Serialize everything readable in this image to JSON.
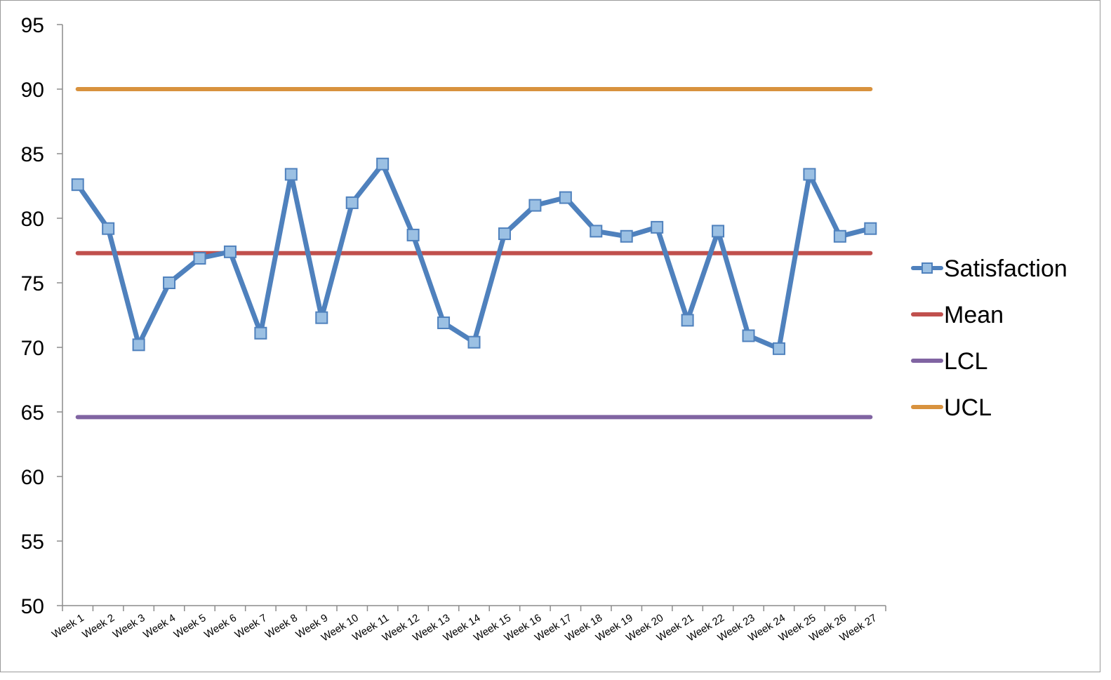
{
  "chart_data": {
    "type": "line",
    "title": "",
    "xlabel": "",
    "ylabel": "",
    "ylim": [
      50,
      95
    ],
    "yticks": [
      50,
      55,
      60,
      65,
      70,
      75,
      80,
      85,
      90,
      95
    ],
    "grid": false,
    "legend_position": "right",
    "categories": [
      "Week 1",
      "Week 2",
      "Week 3",
      "Week 4",
      "Week 5",
      "Week 6",
      "Week 7",
      "Week 8",
      "Week 9",
      "Week 10",
      "Week 11",
      "Week 12",
      "Week 13",
      "Week 14",
      "Week 15",
      "Week 16",
      "Week 17",
      "Week 18",
      "Week 19",
      "Week 20",
      "Week 21",
      "Week 22",
      "Week 23",
      "Week 24",
      "Week 25",
      "Week 26",
      "Week 27"
    ],
    "series": [
      {
        "name": "Satisfaction",
        "color": "#4f81bd",
        "marker": "square",
        "values": [
          82.6,
          79.2,
          70.2,
          75.0,
          76.9,
          77.4,
          71.1,
          83.4,
          72.3,
          81.2,
          84.2,
          78.7,
          71.9,
          70.4,
          78.8,
          81.0,
          81.6,
          79.0,
          78.6,
          79.3,
          72.1,
          79.0,
          70.9,
          69.9,
          83.4,
          78.6,
          79.2
        ]
      },
      {
        "name": "Mean",
        "color": "#c0504d",
        "marker": "none",
        "values": [
          77.3,
          77.3,
          77.3,
          77.3,
          77.3,
          77.3,
          77.3,
          77.3,
          77.3,
          77.3,
          77.3,
          77.3,
          77.3,
          77.3,
          77.3,
          77.3,
          77.3,
          77.3,
          77.3,
          77.3,
          77.3,
          77.3,
          77.3,
          77.3,
          77.3,
          77.3,
          77.3
        ]
      },
      {
        "name": "LCL",
        "color": "#8064a2",
        "marker": "none",
        "values": [
          64.6,
          64.6,
          64.6,
          64.6,
          64.6,
          64.6,
          64.6,
          64.6,
          64.6,
          64.6,
          64.6,
          64.6,
          64.6,
          64.6,
          64.6,
          64.6,
          64.6,
          64.6,
          64.6,
          64.6,
          64.6,
          64.6,
          64.6,
          64.6,
          64.6,
          64.6,
          64.6
        ]
      },
      {
        "name": "UCL",
        "color": "#d8923e",
        "marker": "none",
        "values": [
          90.0,
          90.0,
          90.0,
          90.0,
          90.0,
          90.0,
          90.0,
          90.0,
          90.0,
          90.0,
          90.0,
          90.0,
          90.0,
          90.0,
          90.0,
          90.0,
          90.0,
          90.0,
          90.0,
          90.0,
          90.0,
          90.0,
          90.0,
          90.0,
          90.0,
          90.0,
          90.0
        ]
      }
    ]
  }
}
